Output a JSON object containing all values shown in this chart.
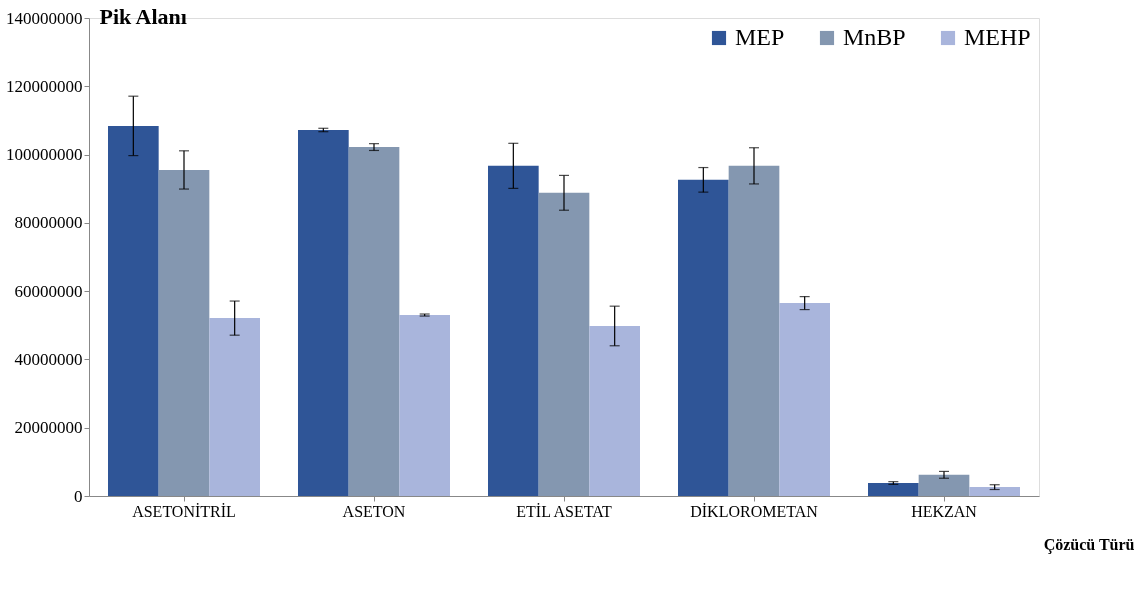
{
  "chart_data": {
    "type": "bar",
    "ylabel": "Pik Alanı",
    "xlabel": "Çözücü Türü",
    "categories": [
      "ASETONİTRİL",
      "ASETON",
      "ETİL ASETAT",
      "DİKLOROMETAN",
      "HEKZAN"
    ],
    "series": [
      {
        "name": "MEP",
        "color": "#2f5597",
        "values": [
          108400000,
          107200000,
          96700000,
          92600000,
          3800000
        ],
        "errors": [
          8700000,
          500000,
          6600000,
          3600000,
          400000
        ]
      },
      {
        "name": "MnBP",
        "color": "#8497b0",
        "values": [
          95500000,
          102200000,
          88800000,
          96700000,
          6200000
        ],
        "errors": [
          5600000,
          1000000,
          5100000,
          5300000,
          1000000
        ]
      },
      {
        "name": "MEHP",
        "color": "#a9b5dc",
        "values": [
          52100000,
          53000000,
          49800000,
          56500000,
          2600000
        ],
        "errors": [
          5000000,
          300000,
          5800000,
          1900000,
          700000
        ]
      }
    ],
    "ylim": [
      0,
      140000000
    ],
    "yticks": [
      0,
      20000000,
      40000000,
      60000000,
      80000000,
      100000000,
      120000000,
      140000000
    ],
    "legend": "top right",
    "grid": false
  }
}
